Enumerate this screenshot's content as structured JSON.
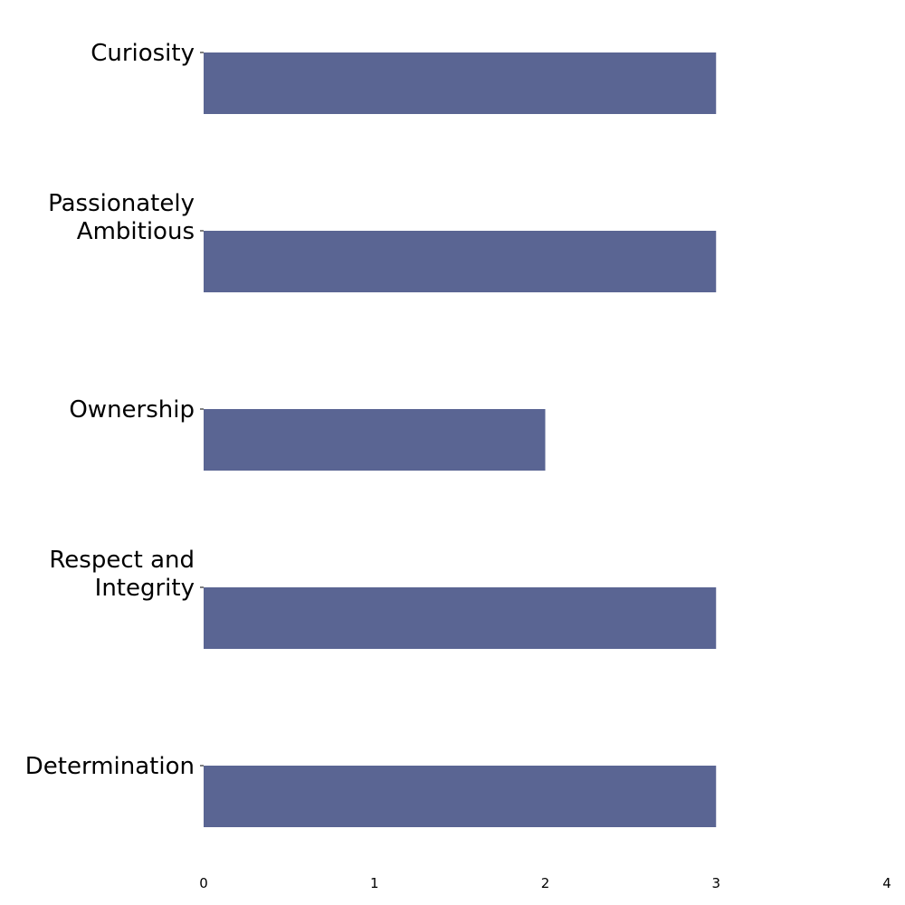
{
  "chart_data": {
    "type": "bar",
    "orientation": "horizontal",
    "categories": [
      [
        "Curiosity"
      ],
      [
        "Passionately",
        "Ambitious"
      ],
      [
        "Ownership"
      ],
      [
        "Respect and",
        "Integrity"
      ],
      [
        "Determination"
      ]
    ],
    "values": [
      3,
      3,
      2,
      3,
      3
    ],
    "xlim": [
      0,
      4
    ],
    "xticks": [
      0,
      1,
      2,
      3,
      4
    ],
    "bar_color": "#5a6593",
    "grid": false,
    "title": "",
    "xlabel": "",
    "ylabel": ""
  }
}
